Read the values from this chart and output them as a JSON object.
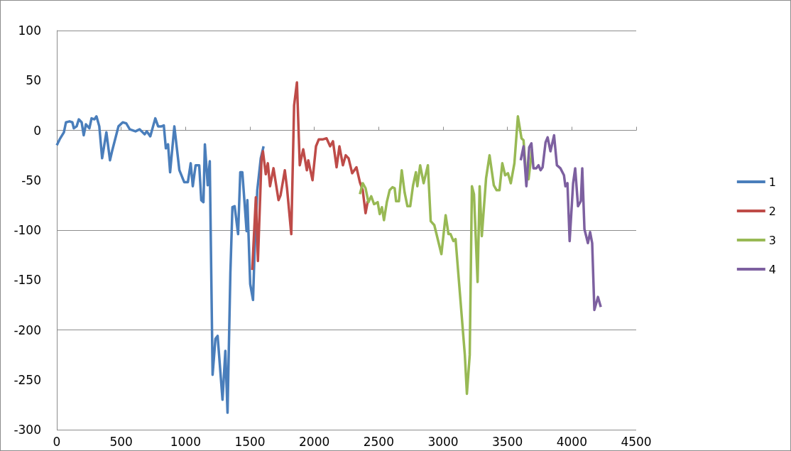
{
  "chart_data": {
    "type": "line",
    "xlim": [
      0,
      4500
    ],
    "xticks": [
      0,
      500,
      1000,
      1500,
      2000,
      2500,
      3000,
      3500,
      4000,
      4500
    ],
    "ylim": [
      -300,
      100
    ],
    "yticks": [
      -300,
      -250,
      -200,
      -150,
      -100,
      -50,
      0,
      50,
      100
    ],
    "grid": "y",
    "legend": "right",
    "marker": "none",
    "line_style": "solid",
    "series": [
      {
        "name": "1",
        "color": "#4a7ebb",
        "x": [
          0,
          22,
          55,
          71,
          99,
          121,
          132,
          154,
          171,
          193,
          209,
          226,
          253,
          270,
          292,
          308,
          330,
          352,
          385,
          413,
          429,
          479,
          512,
          539,
          567,
          611,
          643,
          682,
          699,
          726,
          765,
          787,
          814,
          831,
          847,
          864,
          880,
          913,
          952,
          990,
          1018,
          1040,
          1056,
          1078,
          1106,
          1122,
          1139,
          1150,
          1172,
          1188,
          1210,
          1232,
          1249,
          1287,
          1309,
          1326,
          1348,
          1364,
          1381,
          1408,
          1425,
          1441,
          1474,
          1480,
          1502,
          1524,
          1535,
          1557,
          1584,
          1606
        ],
        "values": [
          -15,
          -9,
          -2,
          8,
          9,
          8,
          2,
          4,
          11,
          8,
          -5,
          6,
          2,
          12,
          11,
          14,
          4,
          -28,
          -2,
          -30,
          -21,
          4,
          8,
          7,
          1,
          -1,
          1,
          -4,
          -1,
          -6,
          12,
          4,
          4,
          5,
          -18,
          -14,
          -42,
          4,
          -40,
          -52,
          -52,
          -33,
          -56,
          -35,
          -35,
          -70,
          -72,
          -14,
          -55,
          -31,
          -245,
          -209,
          -206,
          -270,
          -221,
          -283,
          -143,
          -77,
          -76,
          -104,
          -42,
          -42,
          -101,
          -70,
          -154,
          -170,
          -126,
          -60,
          -28,
          -16
        ]
      },
      {
        "name": "2",
        "color": "#be4b48",
        "x": [
          1518,
          1546,
          1562,
          1590,
          1601,
          1623,
          1639,
          1656,
          1683,
          1722,
          1738,
          1771,
          1788,
          1821,
          1843,
          1865,
          1887,
          1914,
          1942,
          1953,
          1986,
          2013,
          2035,
          2068,
          2095,
          2123,
          2145,
          2173,
          2195,
          2222,
          2244,
          2266,
          2294,
          2327,
          2354,
          2376,
          2398,
          2415
        ],
        "values": [
          -140,
          -67,
          -131,
          -28,
          -21,
          -44,
          -33,
          -56,
          -38,
          -70,
          -65,
          -40,
          -58,
          -104,
          25,
          48,
          -35,
          -19,
          -40,
          -30,
          -50,
          -16,
          -9,
          -9,
          -8,
          -16,
          -11,
          -37,
          -16,
          -35,
          -25,
          -28,
          -43,
          -37,
          -52,
          -60,
          -83,
          -71
        ]
      },
      {
        "name": "3",
        "color": "#98b954",
        "x": [
          2354,
          2376,
          2398,
          2420,
          2442,
          2464,
          2492,
          2508,
          2525,
          2541,
          2563,
          2585,
          2607,
          2624,
          2635,
          2657,
          2679,
          2701,
          2723,
          2745,
          2767,
          2789,
          2800,
          2822,
          2849,
          2882,
          2904,
          2932,
          2987,
          3020,
          3042,
          3058,
          3080,
          3097,
          3169,
          3185,
          3207,
          3224,
          3240,
          3268,
          3284,
          3301,
          3334,
          3361,
          3394,
          3416,
          3438,
          3460,
          3482,
          3504,
          3526,
          3554,
          3581,
          3609,
          3625,
          3642,
          3664,
          3691
        ],
        "values": [
          -64,
          -53,
          -58,
          -72,
          -66,
          -74,
          -72,
          -84,
          -77,
          -90,
          -72,
          -60,
          -57,
          -58,
          -71,
          -71,
          -40,
          -62,
          -76,
          -76,
          -55,
          -42,
          -56,
          -35,
          -53,
          -35,
          -91,
          -95,
          -124,
          -85,
          -104,
          -104,
          -111,
          -109,
          -225,
          -264,
          -225,
          -56,
          -64,
          -152,
          -56,
          -106,
          -48,
          -25,
          -55,
          -60,
          -60,
          -33,
          -45,
          -43,
          -53,
          -33,
          14,
          -8,
          -10,
          -40,
          -49,
          -19
        ]
      },
      {
        "name": "4",
        "color": "#7d60a0",
        "x": [
          3603,
          3625,
          3647,
          3669,
          3686,
          3702,
          3724,
          3741,
          3757,
          3773,
          3796,
          3812,
          3834,
          3862,
          3884,
          3911,
          3939,
          3950,
          3966,
          3983,
          4010,
          4026,
          4048,
          4070,
          4081,
          4098,
          4125,
          4142,
          4158,
          4175,
          4203,
          4225
        ],
        "values": [
          -30,
          -16,
          -56,
          -17,
          -13,
          -38,
          -38,
          -35,
          -40,
          -37,
          -12,
          -7,
          -21,
          -5,
          -35,
          -38,
          -45,
          -56,
          -53,
          -111,
          -53,
          -38,
          -76,
          -71,
          -38,
          -99,
          -113,
          -102,
          -113,
          -180,
          -167,
          -177
        ]
      }
    ]
  }
}
